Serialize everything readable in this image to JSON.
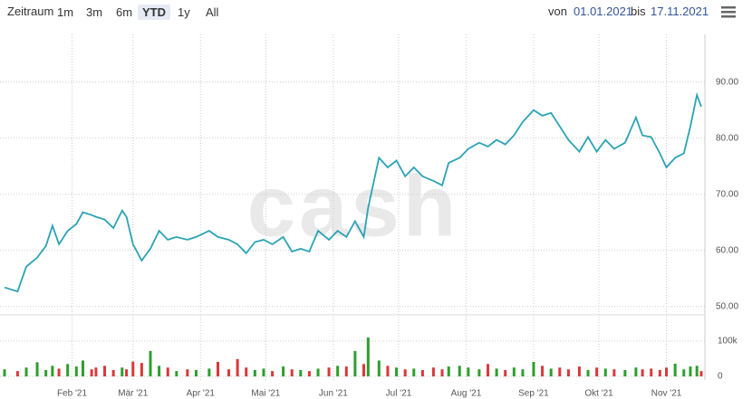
{
  "toolbar": {
    "label": "Zeitraum",
    "buttons": [
      "1m",
      "3m",
      "6m",
      "YTD",
      "1y",
      "All"
    ],
    "from_label": "von",
    "to_label": "bis"
  },
  "watermark": "cash",
  "chart_data": {
    "type": "line",
    "x": [
      "01.01.2021",
      "07.01.2021",
      "11.01.2021",
      "16.01.2021",
      "20.01.2021",
      "23.01.2021",
      "26.01.2021",
      "30.01.2021",
      "03.02.2021",
      "06.02.2021",
      "10.02.2021",
      "12.02.2021",
      "16.02.2021",
      "20.02.2021",
      "24.02.2021",
      "26.02.2021",
      "01.03.2021",
      "05.03.2021",
      "09.03.2021",
      "13.03.2021",
      "17.03.2021",
      "21.03.2021",
      "26.03.2021",
      "30.03.2021",
      "05.04.2021",
      "09.04.2021",
      "14.04.2021",
      "18.04.2021",
      "22.04.2021",
      "26.04.2021",
      "30.04.2021",
      "04.05.2021",
      "09.05.2021",
      "13.05.2021",
      "17.05.2021",
      "21.05.2021",
      "25.05.2021",
      "30.05.2021",
      "03.06.2021",
      "07.06.2021",
      "11.06.2021",
      "15.06.2021",
      "17.06.2021",
      "22.06.2021",
      "26.06.2021",
      "30.06.2021",
      "04.07.2021",
      "08.07.2021",
      "12.07.2021",
      "17.07.2021",
      "21.07.2021",
      "24.07.2021",
      "29.07.2021",
      "02.08.2021",
      "07.08.2021",
      "11.08.2021",
      "15.08.2021",
      "19.08.2021",
      "23.08.2021",
      "27.08.2021",
      "01.09.2021",
      "05.09.2021",
      "09.09.2021",
      "13.09.2021",
      "17.09.2021",
      "22.09.2021",
      "26.09.2021",
      "30.09.2021",
      "04.10.2021",
      "08.10.2021",
      "13.10.2021",
      "18.10.2021",
      "21.10.2021",
      "25.10.2021",
      "29.10.2021",
      "01.11.2021",
      "05.11.2021",
      "09.11.2021",
      "12.11.2021",
      "15.11.2021",
      "17.11.2021"
    ],
    "series": [
      {
        "color": "#2ba3b3",
        "values": [
          53.4,
          52.7,
          57.1,
          58.7,
          60.8,
          64.4,
          61.1,
          63.5,
          64.7,
          66.8,
          66.3,
          66,
          65.5,
          64,
          67.1,
          66,
          61.1,
          58.2,
          60.3,
          63.5,
          61.9,
          62.4,
          61.9,
          62.4,
          63.5,
          62.4,
          61.9,
          61.1,
          59.5,
          61.5,
          61.9,
          61.1,
          62.4,
          59.8,
          60.3,
          59.8,
          63.5,
          61.9,
          63.5,
          62.4,
          65.2,
          62.4,
          67.6,
          76.5,
          74.8,
          76,
          73.2,
          74.8,
          73.2,
          72.4,
          71.6,
          75.6,
          76.5,
          78.1,
          79.2,
          78.5,
          79.7,
          78.9,
          80.5,
          82.9,
          85,
          84,
          84.5,
          82.1,
          79.7,
          77.6,
          80.2,
          77.6,
          79.7,
          78.1,
          79.2,
          83.7,
          80.5,
          80.2,
          77.3,
          74.8,
          76.5,
          77.3,
          82.1,
          87.7,
          85.6
        ]
      },
      {
        "type": "bar",
        "axis": "y2",
        "values": [
          20000,
          15000,
          25000,
          40000,
          18000,
          30000,
          22000,
          35000,
          28000,
          45000,
          20000,
          25000,
          30000,
          18000,
          25000,
          20000,
          42000,
          38000,
          72000,
          30000,
          25000,
          15000,
          20000,
          18000,
          22000,
          41000,
          20000,
          49000,
          25000,
          18000,
          22000,
          15000,
          28000,
          20000,
          18000,
          15000,
          22000,
          25000,
          30000,
          28000,
          72000,
          35000,
          110000,
          45000,
          30000,
          25000,
          20000,
          22000,
          18000,
          25000,
          20000,
          28000,
          30000,
          25000,
          20000,
          35000,
          22000,
          18000,
          25000,
          20000,
          41000,
          30000,
          22000,
          25000,
          20000,
          28000,
          18000,
          25000,
          22000,
          20000,
          18000,
          25000,
          20000,
          22000,
          18000,
          25000,
          36000,
          20000,
          28000,
          30000,
          15000
        ]
      }
    ],
    "up_color": "#2e9e2e",
    "down_color": "#d9393b",
    "xlim": [
      "01.01.2021",
      "17.11.2021"
    ],
    "xticks": [
      {
        "value": "01.02.2021",
        "label": "Feb '21"
      },
      {
        "value": "01.03.2021",
        "label": "Mär '21"
      },
      {
        "value": "01.04.2021",
        "label": "Apr '21"
      },
      {
        "value": "01.05.2021",
        "label": "Mai '21"
      },
      {
        "value": "01.06.2021",
        "label": "Jun '21"
      },
      {
        "value": "01.07.2021",
        "label": "Jul '21"
      },
      {
        "value": "01.08.2021",
        "label": "Aug '21"
      },
      {
        "value": "01.09.2021",
        "label": "Sep '21"
      },
      {
        "value": "01.10.2021",
        "label": "Okt '21"
      },
      {
        "value": "01.11.2021",
        "label": "Nov '21"
      }
    ],
    "ylim": [
      49,
      98.5
    ],
    "yticks": [
      {
        "value": 50,
        "label": "50.00"
      },
      {
        "value": 60,
        "label": "60.00"
      },
      {
        "value": 70,
        "label": "70.00"
      },
      {
        "value": 80,
        "label": "80.00"
      },
      {
        "value": 90,
        "label": "90.00"
      }
    ],
    "y2lim": [
      0,
      164000
    ],
    "y2ticks": [
      0,
      {
        "value": 100000,
        "label": "100k"
      }
    ],
    "grid": true
  }
}
